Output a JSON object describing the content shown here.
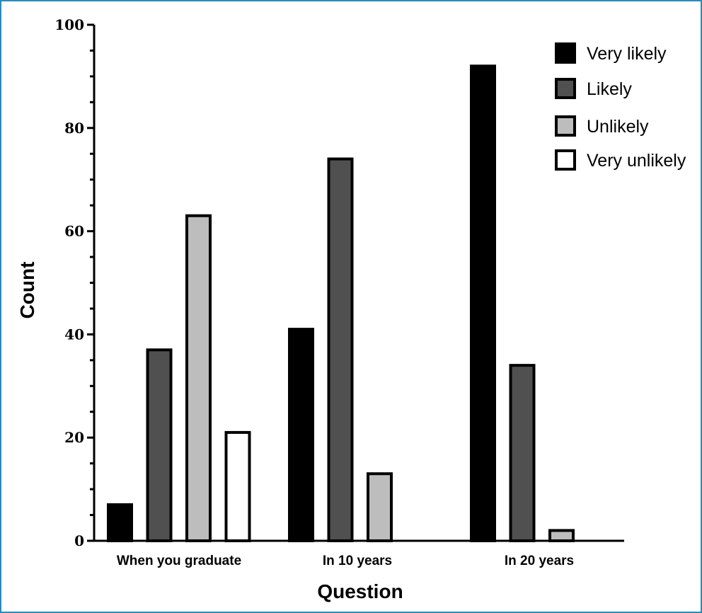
{
  "chart_data": {
    "type": "bar",
    "title": "",
    "xlabel": "Question",
    "ylabel": "Count",
    "ylim": [
      0,
      100
    ],
    "yticks": [
      0,
      20,
      40,
      60,
      80,
      100
    ],
    "categories": [
      "When you graduate",
      "In 10 years",
      "In 20 years"
    ],
    "series": [
      {
        "name": "Very likely",
        "color": "#000000",
        "values": [
          7,
          41,
          92
        ]
      },
      {
        "name": "Likely",
        "color": "#505050",
        "values": [
          37,
          74,
          34
        ]
      },
      {
        "name": "Unlikely",
        "color": "#bdbdbd",
        "values": [
          63,
          13,
          2
        ]
      },
      {
        "name": "Very unlikely",
        "color": "#ffffff",
        "values": [
          21,
          0,
          0
        ]
      }
    ],
    "grid": false,
    "legend_position": "top-right",
    "frame_color": "#2a8bb7"
  }
}
